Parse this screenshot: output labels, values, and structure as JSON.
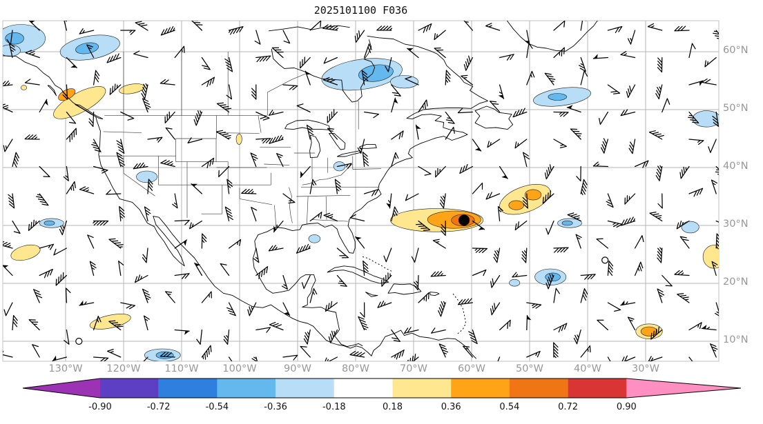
{
  "title": "2025101100 F036",
  "axes": {
    "tick_color": "#979797",
    "lat_tick_labels": [
      "60°N",
      "50°N",
      "40°N",
      "30°N",
      "20°N",
      "10°N"
    ],
    "lat_tick_values": [
      60,
      50,
      40,
      30,
      20,
      10
    ],
    "lon_tick_labels": [
      "130°W",
      "120°W",
      "110°W",
      "100°W",
      "90°W",
      "80°W",
      "70°W",
      "60°W",
      "50°W",
      "40°W",
      "30°W"
    ],
    "lon_tick_values": [
      -130,
      -120,
      -110,
      -100,
      -90,
      -80,
      -70,
      -60,
      -50,
      -40,
      -30
    ]
  },
  "chart_data": {
    "type": "map",
    "title": "2025101100 F036",
    "region": "North America and western North Atlantic",
    "extent": {
      "lon_min": -140.8,
      "lon_max": -17.4,
      "lat_min": 6.5,
      "lat_max": 65.4
    },
    "graticule_deg": 10,
    "colorbar": {
      "orientation": "horizontal",
      "extend": "both",
      "levels": [
        -0.9,
        -0.72,
        -0.54,
        -0.36,
        -0.18,
        0.18,
        0.36,
        0.54,
        0.72,
        0.9
      ],
      "tick_labels": [
        "-0.90",
        "-0.72",
        "-0.54",
        "-0.36",
        "-0.18",
        "0.18",
        "0.36",
        "0.54",
        "0.72",
        "0.90"
      ],
      "colors": [
        "#9C33B5",
        "#5D3FC4",
        "#2F7FDE",
        "#63B8EE",
        "#B7DEF6",
        "#FFFFFF",
        "#FFE78F",
        "#FFA317",
        "#F07514",
        "#D93535",
        "#FF8FC0"
      ]
    },
    "wind_barbs": {
      "color": "#000000",
      "coverage": "regular grid over full domain"
    },
    "markers": {
      "storm_center": {
        "lon": -61.3,
        "lat": 30.9,
        "symbol": "filled-circle",
        "color": "#000000"
      },
      "open_circles": [
        {
          "lon": -127.7,
          "lat": 10.0
        },
        {
          "lon": -37.0,
          "lat": 24.0
        }
      ]
    },
    "shaded_regions": [
      {
        "lon": -137.7,
        "lat": 62.3,
        "rx": 4.2,
        "ry": 2.4,
        "rot": 0,
        "level": -1
      },
      {
        "lon": -138.8,
        "lat": 62.3,
        "rx": 1.6,
        "ry": 1.0,
        "rot": 0,
        "level": -2
      },
      {
        "lon": -139.6,
        "lat": 60.2,
        "rx": 1.8,
        "ry": 1.0,
        "rot": 0,
        "level": -1
      },
      {
        "lon": -125.8,
        "lat": 60.7,
        "rx": 5.2,
        "ry": 2.0,
        "rot": -10,
        "level": -1
      },
      {
        "lon": -126.3,
        "lat": 60.6,
        "rx": 2.0,
        "ry": 0.9,
        "rot": -10,
        "level": -2
      },
      {
        "lon": -127.6,
        "lat": 51.2,
        "rx": 5.0,
        "ry": 1.7,
        "rot": -28,
        "level": 1
      },
      {
        "lon": -129.8,
        "lat": 52.6,
        "rx": 1.6,
        "ry": 0.8,
        "rot": -28,
        "level": 2
      },
      {
        "lon": -118.6,
        "lat": 53.6,
        "rx": 2.2,
        "ry": 0.8,
        "rot": -10,
        "level": 1
      },
      {
        "lon": -137.2,
        "lat": 53.8,
        "rx": 0.5,
        "ry": 0.4,
        "rot": 0,
        "level": 1
      },
      {
        "lon": -78.9,
        "lat": 56.1,
        "rx": 7.0,
        "ry": 2.6,
        "rot": -8,
        "level": -1
      },
      {
        "lon": -76.5,
        "lat": 56.3,
        "rx": 3.0,
        "ry": 1.4,
        "rot": -8,
        "level": -2
      },
      {
        "lon": -71.6,
        "lat": 54.8,
        "rx": 2.4,
        "ry": 1.1,
        "rot": 0,
        "level": -1
      },
      {
        "lon": -44.4,
        "lat": 52.2,
        "rx": 5.0,
        "ry": 1.5,
        "rot": -8,
        "level": -1
      },
      {
        "lon": -45.2,
        "lat": 52.2,
        "rx": 1.6,
        "ry": 0.6,
        "rot": 0,
        "level": -2
      },
      {
        "lon": -19.5,
        "lat": 48.4,
        "rx": 2.4,
        "ry": 1.4,
        "rot": 0,
        "level": -1
      },
      {
        "lon": -116.0,
        "lat": 38.4,
        "rx": 1.8,
        "ry": 1.0,
        "rot": 0,
        "level": -1
      },
      {
        "lon": -100.1,
        "lat": 44.9,
        "rx": 0.5,
        "ry": 0.9,
        "rot": 0,
        "level": 1
      },
      {
        "lon": -82.8,
        "lat": 40.2,
        "rx": 1.0,
        "ry": 0.8,
        "rot": 0,
        "level": -1
      },
      {
        "lon": -87.1,
        "lat": 27.7,
        "rx": 1.0,
        "ry": 0.7,
        "rot": 0,
        "level": -1
      },
      {
        "lon": -132.4,
        "lat": 30.4,
        "rx": 2.1,
        "ry": 0.8,
        "rot": 0,
        "level": -1
      },
      {
        "lon": -132.8,
        "lat": 30.4,
        "rx": 0.9,
        "ry": 0.4,
        "rot": 0,
        "level": -2
      },
      {
        "lon": -136.9,
        "lat": 25.3,
        "rx": 2.6,
        "ry": 1.2,
        "rot": -15,
        "level": 1
      },
      {
        "lon": -66.0,
        "lat": 30.9,
        "rx": 8.0,
        "ry": 2.0,
        "rot": 0,
        "level": 1
      },
      {
        "lon": -63.0,
        "lat": 31.0,
        "rx": 4.6,
        "ry": 1.5,
        "rot": 0,
        "level": 2
      },
      {
        "lon": -61.5,
        "lat": 30.9,
        "rx": 2.0,
        "ry": 1.0,
        "rot": 0,
        "level": 3
      },
      {
        "lon": -50.8,
        "lat": 34.5,
        "rx": 4.6,
        "ry": 2.2,
        "rot": -20,
        "level": 1
      },
      {
        "lon": -52.3,
        "lat": 33.5,
        "rx": 1.3,
        "ry": 0.8,
        "rot": 0,
        "level": 2
      },
      {
        "lon": -49.4,
        "lat": 35.3,
        "rx": 1.4,
        "ry": 0.9,
        "rot": 0,
        "level": 2
      },
      {
        "lon": -43.1,
        "lat": 30.4,
        "rx": 2.1,
        "ry": 0.8,
        "rot": 0,
        "level": -1
      },
      {
        "lon": -43.5,
        "lat": 30.4,
        "rx": 0.9,
        "ry": 0.4,
        "rot": 0,
        "level": -2
      },
      {
        "lon": -22.3,
        "lat": 29.7,
        "rx": 1.5,
        "ry": 1.0,
        "rot": 0,
        "level": -1
      },
      {
        "lon": -18.2,
        "lat": 24.6,
        "rx": 1.9,
        "ry": 2.0,
        "rot": 0,
        "level": 1
      },
      {
        "lon": -46.4,
        "lat": 21.1,
        "rx": 2.7,
        "ry": 1.4,
        "rot": 0,
        "level": -1
      },
      {
        "lon": -46.0,
        "lat": 21.1,
        "rx": 1.3,
        "ry": 0.7,
        "rot": 0,
        "level": -2
      },
      {
        "lon": -52.6,
        "lat": 20.1,
        "rx": 0.9,
        "ry": 0.6,
        "rot": 0,
        "level": -1
      },
      {
        "lon": -122.3,
        "lat": 13.4,
        "rx": 3.6,
        "ry": 1.1,
        "rot": -12,
        "level": 1
      },
      {
        "lon": -113.3,
        "lat": 7.6,
        "rx": 3.1,
        "ry": 1.1,
        "rot": 0,
        "level": -1
      },
      {
        "lon": -112.9,
        "lat": 7.6,
        "rx": 1.5,
        "ry": 0.6,
        "rot": 0,
        "level": -2
      },
      {
        "lon": -29.4,
        "lat": 11.7,
        "rx": 2.3,
        "ry": 1.3,
        "rot": 0,
        "level": 1
      },
      {
        "lon": -29.4,
        "lat": 11.7,
        "rx": 1.4,
        "ry": 0.8,
        "rot": 0,
        "level": 2
      }
    ]
  }
}
